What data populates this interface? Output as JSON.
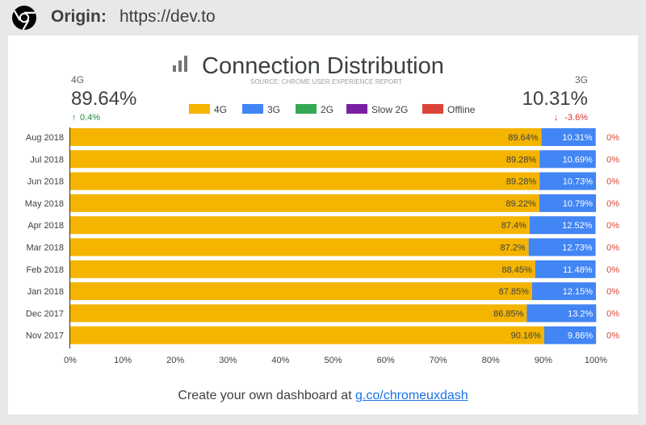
{
  "header": {
    "origin_label": "Origin:",
    "origin_url": "https://dev.to"
  },
  "footer": {
    "text": "Create your own dashboard at ",
    "link": "g.co/chromeuxdash"
  },
  "stats": {
    "left": {
      "name": "4G",
      "value": "89.64%",
      "change": "0.4%",
      "direction": "up"
    },
    "right": {
      "name": "3G",
      "value": "10.31%",
      "change": "-3.6%",
      "direction": "down"
    }
  },
  "colors": {
    "4G": "#f4b400",
    "3G": "#4285f4",
    "2G": "#34a853",
    "Slow 2G": "#7b1fa2",
    "Offline": "#db4437",
    "up": "#1e8e3e",
    "down": "#d93025"
  },
  "chart_data": {
    "type": "bar",
    "orientation": "horizontal",
    "stacked": true,
    "title": "Connection Distribution",
    "subtitle": "SOURCE: CHROME USER EXPERIENCE REPORT",
    "legend_position": "top",
    "categories": [
      "Aug 2018",
      "Jul 2018",
      "Jun 2018",
      "May 2018",
      "Apr 2018",
      "Mar 2018",
      "Feb 2018",
      "Jan 2018",
      "Dec 2017",
      "Nov 2017"
    ],
    "series": [
      {
        "name": "4G",
        "values": [
          89.64,
          89.28,
          89.28,
          89.22,
          87.4,
          87.2,
          88.45,
          87.85,
          86.85,
          90.16
        ],
        "labels": [
          "89.64%",
          "89.28%",
          "89.28%",
          "89.22%",
          "87.4%",
          "87.2%",
          "88.45%",
          "87.85%",
          "86.85%",
          "90.16%"
        ]
      },
      {
        "name": "3G",
        "values": [
          10.31,
          10.69,
          10.73,
          10.79,
          12.52,
          12.73,
          11.48,
          12.15,
          13.2,
          9.86
        ],
        "labels": [
          "10.31%",
          "10.69%",
          "10.73%",
          "10.79%",
          "12.52%",
          "12.73%",
          "11.48%",
          "12.15%",
          "13.2%",
          "9.86%"
        ]
      },
      {
        "name": "2G",
        "values": [
          0,
          0,
          0,
          0,
          0,
          0,
          0,
          0,
          0,
          0
        ]
      },
      {
        "name": "Slow 2G",
        "values": [
          0,
          0,
          0,
          0,
          0,
          0,
          0,
          0,
          0,
          0
        ]
      },
      {
        "name": "Offline",
        "values": [
          0,
          0,
          0,
          0,
          0,
          0,
          0,
          0,
          0,
          0
        ],
        "labels": [
          "0%",
          "0%",
          "0%",
          "0%",
          "0%",
          "0%",
          "0%",
          "0%",
          "0%",
          "0%"
        ]
      }
    ],
    "xlim": [
      0,
      100
    ],
    "x_ticks": [
      "0%",
      "10%",
      "20%",
      "30%",
      "40%",
      "50%",
      "60%",
      "70%",
      "80%",
      "90%",
      "100%"
    ],
    "grid": false
  }
}
